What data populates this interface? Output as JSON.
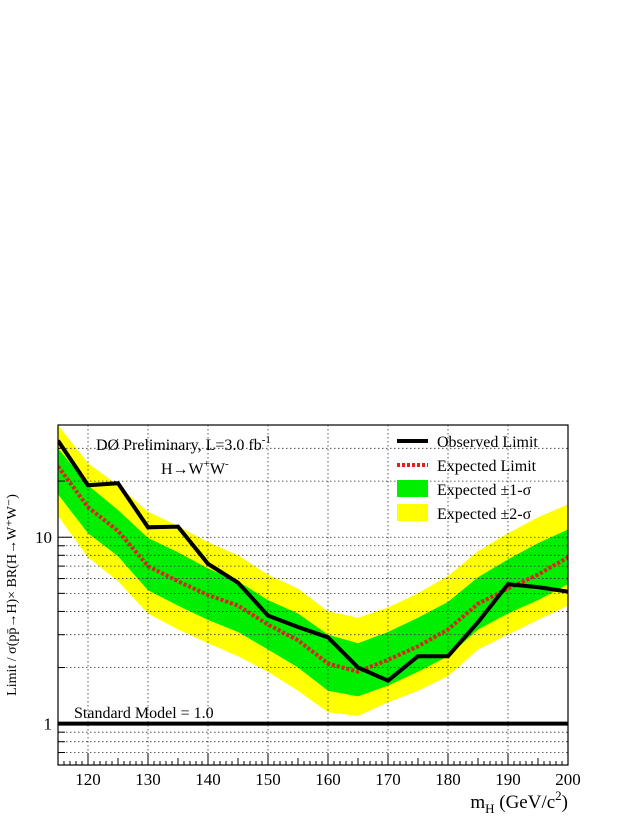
{
  "chart_data": {
    "type": "line",
    "title": "",
    "annotation": {
      "experiment_prefix": "DØ Preliminary, L=3.0 fb",
      "lumi_exponent": "-1",
      "channel_prefix": "H→W",
      "channel_sup1": "+",
      "channel_mid": "W",
      "channel_sup2": "-"
    },
    "xlabel": {
      "main": "m",
      "sub": "H",
      "rest": " (GeV/c",
      "sup": "2",
      "close": ")"
    },
    "ylabel": "Limit / σ(pp̄→H)× BR(H→W⁺W⁻)",
    "xlim": [
      115,
      200
    ],
    "ylim": [
      0.6,
      40
    ],
    "yscale": "log",
    "grid": true,
    "x_ticks": [
      120,
      130,
      140,
      150,
      160,
      170,
      180,
      190,
      200
    ],
    "y_ticks": [
      1,
      10
    ],
    "legend": {
      "placement": "top-right",
      "entries": [
        {
          "label": "Observed Limit",
          "style": "solid-line",
          "color": "#000000"
        },
        {
          "label": "Expected Limit",
          "style": "dotted-line",
          "color": "#e0201a"
        },
        {
          "label": "Expected ±1-σ",
          "style": "fill",
          "color": "#00ee00"
        },
        {
          "label": "Expected ±2-σ",
          "style": "fill",
          "color": "#ffff00"
        }
      ]
    },
    "x": [
      115,
      120,
      125,
      130,
      135,
      140,
      145,
      150,
      155,
      160,
      165,
      170,
      175,
      180,
      185,
      190,
      195,
      200
    ],
    "series": [
      {
        "name": "Observed Limit",
        "values": [
          33,
          19,
          19.5,
          11.3,
          11.4,
          7.2,
          5.7,
          3.8,
          3.3,
          2.9,
          2.0,
          1.7,
          2.3,
          2.3,
          3.5,
          5.6,
          5.4,
          5.1
        ]
      },
      {
        "name": "Expected Limit",
        "values": [
          24,
          14.5,
          10.8,
          7.0,
          5.8,
          4.9,
          4.3,
          3.4,
          2.8,
          2.1,
          1.9,
          2.2,
          2.6,
          3.2,
          4.4,
          5.3,
          6.3,
          7.8
        ]
      },
      {
        "name": "Expected ±1-σ",
        "upper": [
          30,
          19,
          14,
          9.9,
          8.3,
          6.8,
          5.8,
          4.6,
          3.9,
          3.0,
          2.7,
          3.1,
          3.7,
          4.5,
          6.1,
          7.6,
          9.3,
          11.0
        ],
        "lower": [
          17,
          10.5,
          7.9,
          5.2,
          4.3,
          3.6,
          3.1,
          2.5,
          2.0,
          1.5,
          1.4,
          1.6,
          1.9,
          2.3,
          3.2,
          3.9,
          4.6,
          5.6
        ]
      },
      {
        "name": "Expected ±2-σ",
        "upper": [
          40,
          25,
          19,
          13.7,
          11.5,
          9.4,
          8.0,
          6.3,
          5.3,
          4.0,
          3.7,
          4.2,
          5.0,
          6.2,
          8.4,
          10.5,
          12.8,
          15.0
        ],
        "lower": [
          13,
          7.8,
          5.8,
          3.9,
          3.2,
          2.7,
          2.3,
          1.9,
          1.5,
          1.15,
          1.1,
          1.3,
          1.5,
          1.8,
          2.5,
          3.0,
          3.6,
          4.3
        ]
      }
    ],
    "reference_line": {
      "label": "Standard Model = 1.0",
      "value": 1.0
    }
  }
}
